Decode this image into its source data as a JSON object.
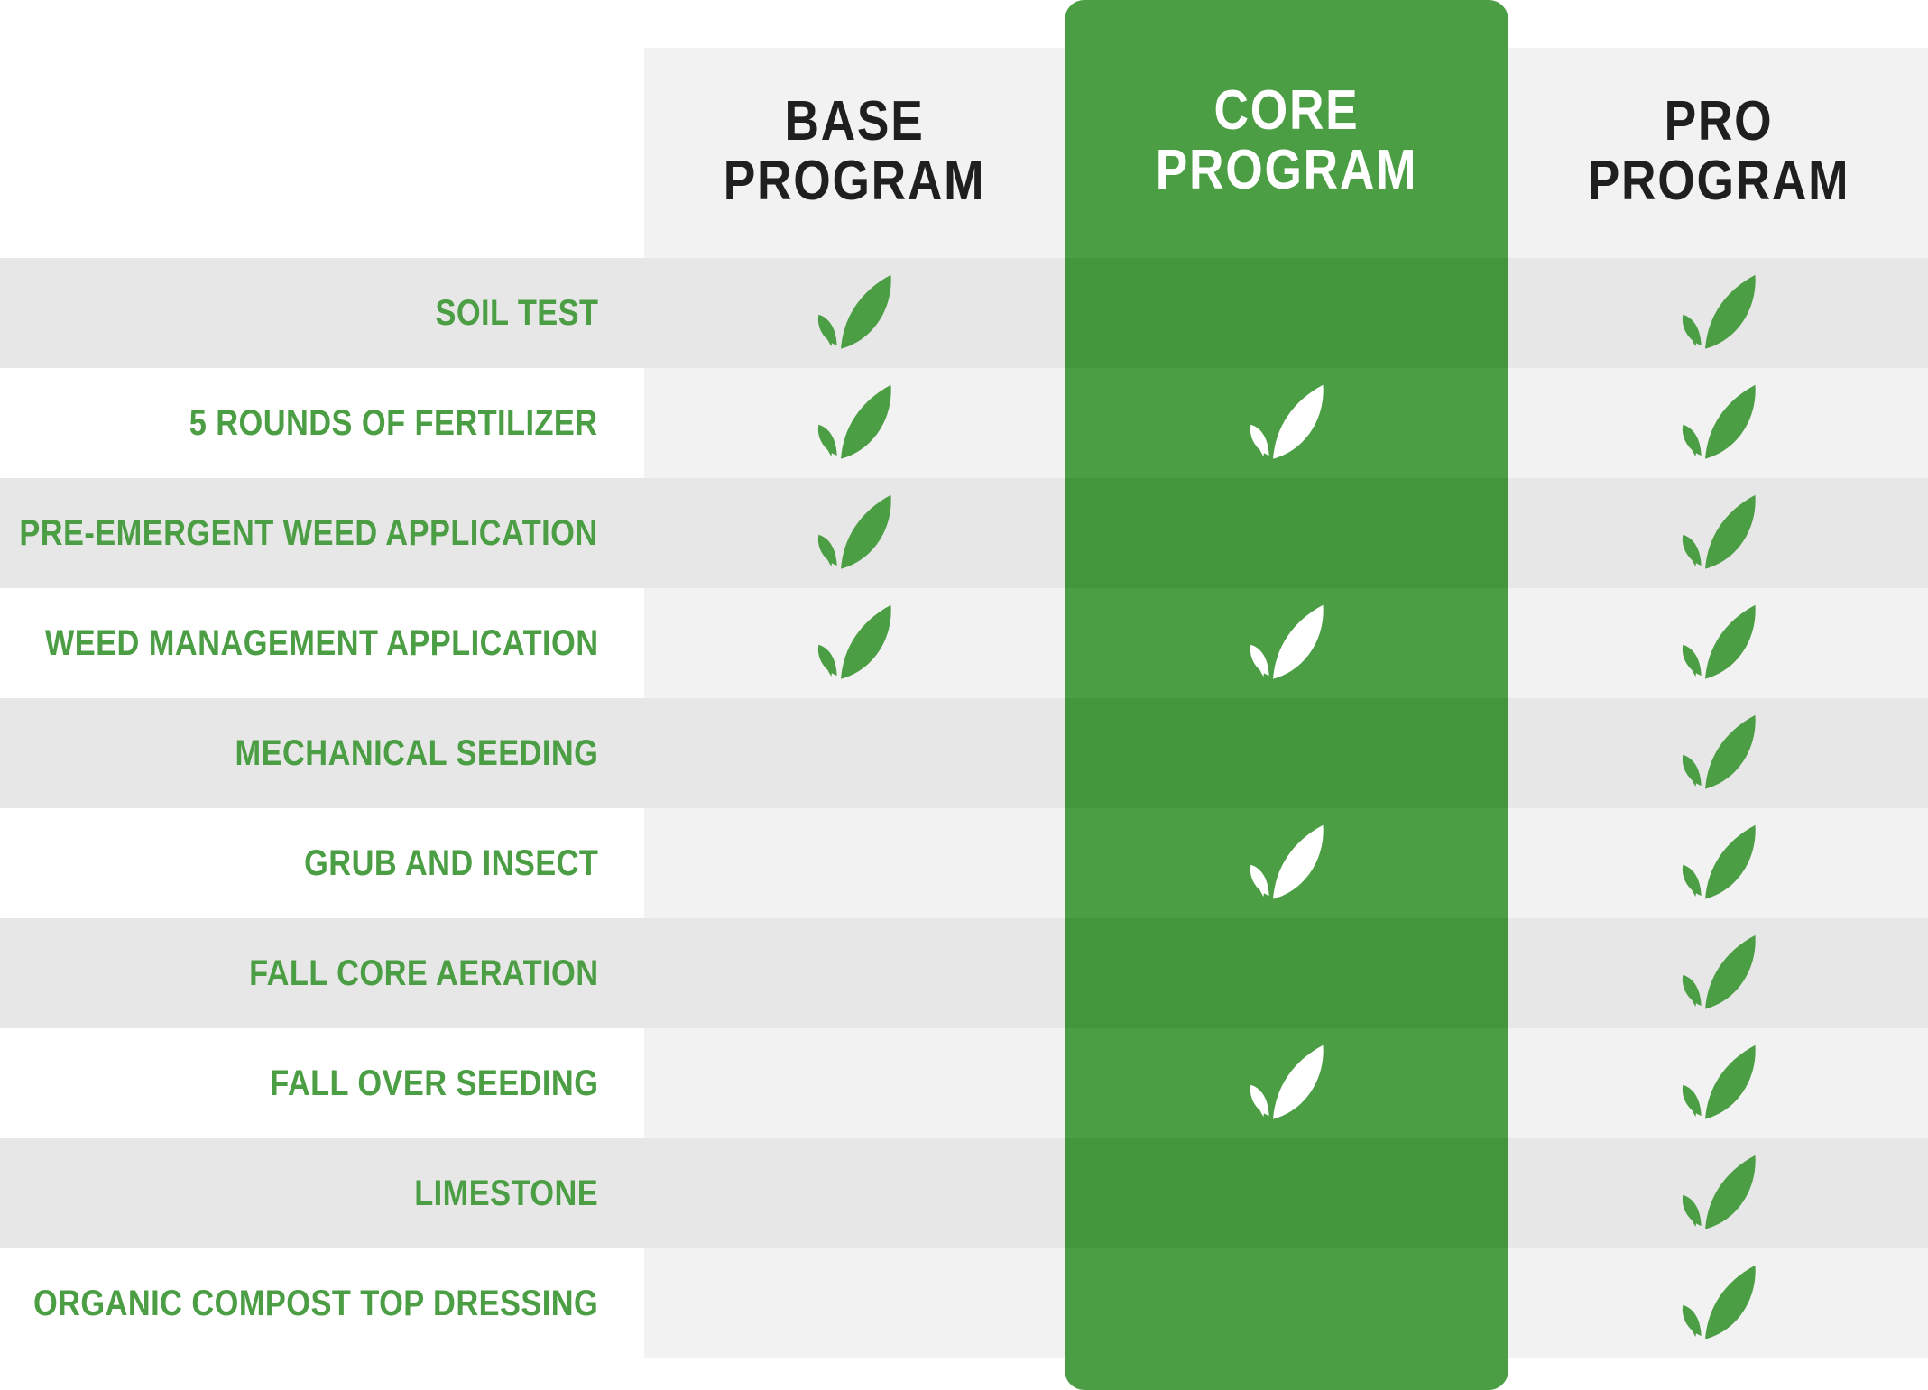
{
  "columns": [
    {
      "line1": "BASE",
      "line2": "PROGRAM"
    },
    {
      "line1": "CORE",
      "line2": "PROGRAM"
    },
    {
      "line1": "PRO",
      "line2": "PROGRAM"
    }
  ],
  "rows": [
    {
      "label": "SOIL TEST",
      "base": true,
      "core": true,
      "pro": true
    },
    {
      "label": "5 ROUNDS OF FERTILIZER",
      "base": true,
      "core": true,
      "pro": true
    },
    {
      "label": "PRE-EMERGENT WEED APPLICATION",
      "base": true,
      "core": true,
      "pro": true
    },
    {
      "label": "WEED MANAGEMENT APPLICATION",
      "base": true,
      "core": true,
      "pro": true
    },
    {
      "label": "MECHANICAL SEEDING",
      "base": false,
      "core": true,
      "pro": true
    },
    {
      "label": "GRUB AND INSECT",
      "base": false,
      "core": true,
      "pro": true
    },
    {
      "label": "FALL CORE AERATION",
      "base": false,
      "core": true,
      "pro": true
    },
    {
      "label": "FALL OVER SEEDING",
      "base": false,
      "core": true,
      "pro": true
    },
    {
      "label": "LIMESTONE",
      "base": false,
      "core": true,
      "pro": true
    },
    {
      "label": "ORGANIC COMPOST TOP DRESSING",
      "base": false,
      "core": false,
      "pro": true
    }
  ],
  "icon": "leaf-check-icon",
  "colors": {
    "accent_green": "#4b9e44",
    "accent_green_shaded": "#43963c",
    "header_text": "#1f1f1f",
    "column_bg": "#f2f2f2",
    "row_shade": "#e7e7e7",
    "icon_on_core": "#ffffff"
  }
}
